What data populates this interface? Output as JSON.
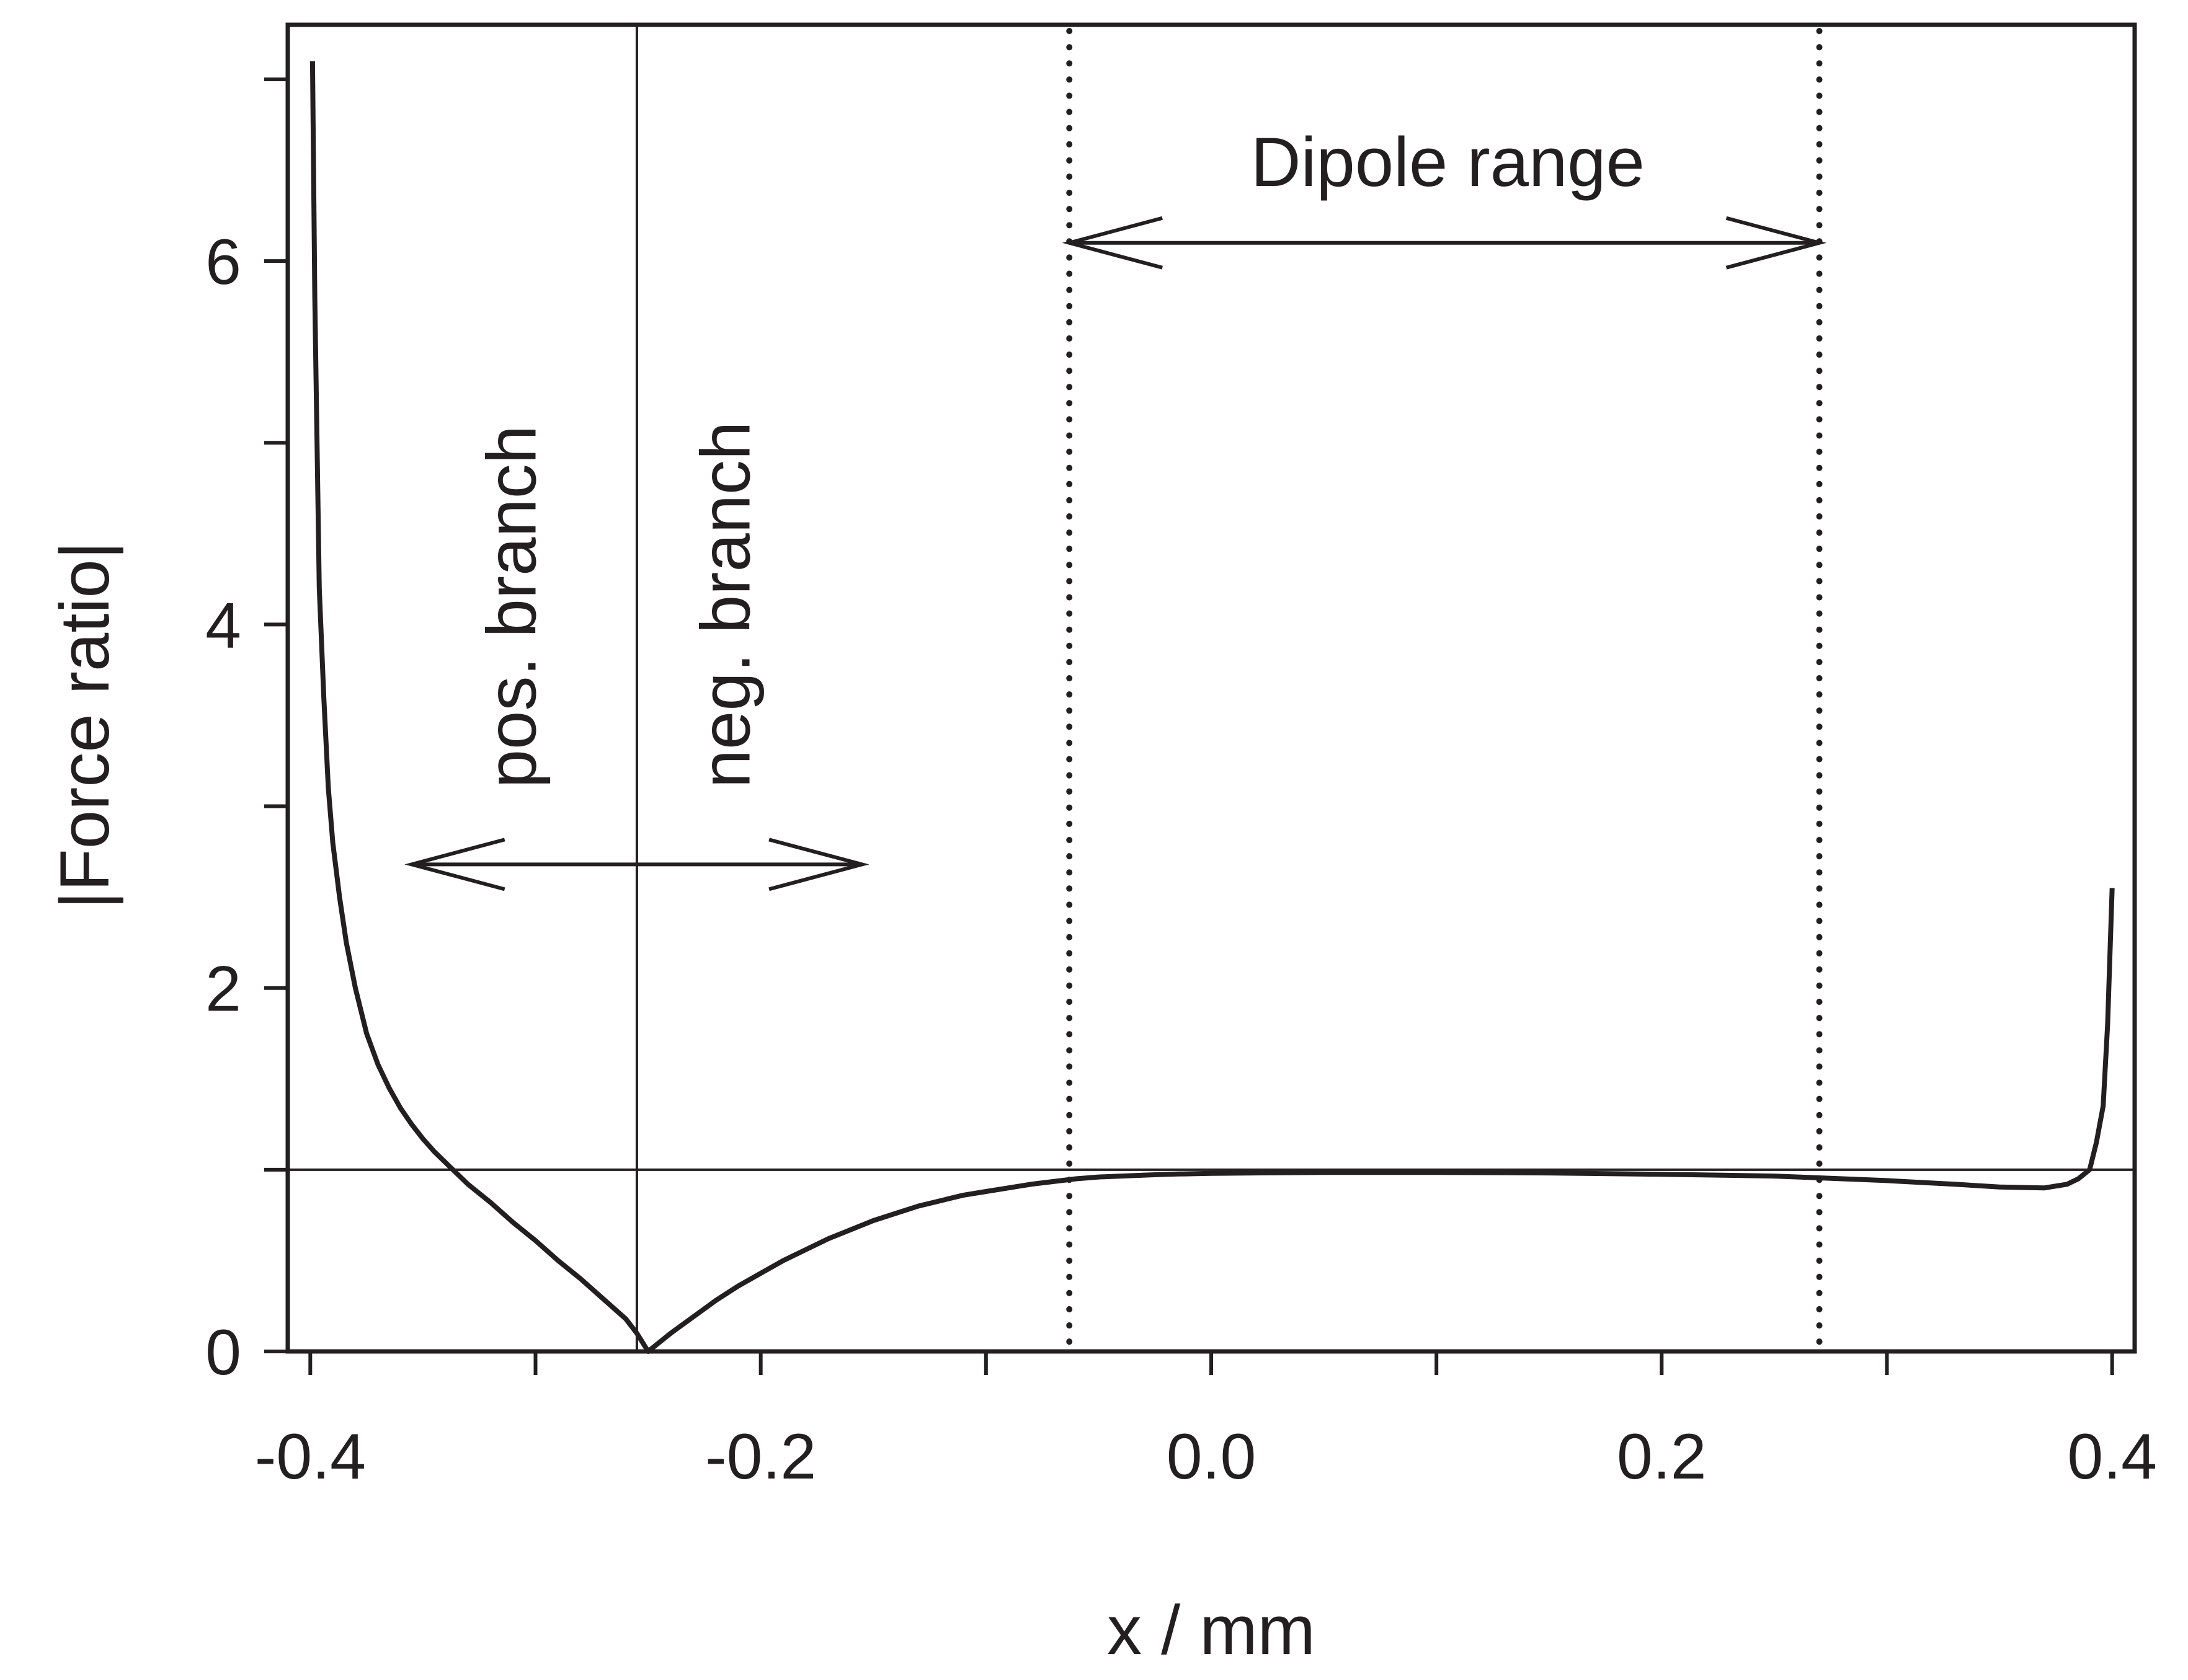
{
  "chart_data": {
    "type": "line",
    "xlabel": "x / mm",
    "ylabel": "|Force ratio|",
    "xlim": [
      -0.41,
      0.41
    ],
    "ylim": [
      0,
      7.3
    ],
    "x_ticks": [
      {
        "value": -0.4,
        "label": "-0.4"
      },
      {
        "value": -0.2,
        "label": "-0.2"
      },
      {
        "value": 0.0,
        "label": "0.0"
      },
      {
        "value": 0.2,
        "label": "0.2"
      },
      {
        "value": 0.4,
        "label": "0.4"
      }
    ],
    "x_minor_ticks": [
      -0.3,
      -0.1,
      0.1,
      0.3
    ],
    "y_ticks": [
      {
        "value": 0,
        "label": "0"
      },
      {
        "value": 2,
        "label": "2"
      },
      {
        "value": 4,
        "label": "4"
      },
      {
        "value": 6,
        "label": "6"
      }
    ],
    "y_minor_ticks": [
      1,
      3,
      5,
      7
    ],
    "grid": false,
    "series": [
      {
        "x": [
          -0.399,
          -0.398,
          -0.396,
          -0.394,
          -0.392,
          -0.39,
          -0.387,
          -0.384,
          -0.38,
          -0.375,
          -0.37,
          -0.365,
          -0.36,
          -0.355,
          -0.35,
          -0.345,
          -0.34,
          -0.335,
          -0.33,
          -0.32,
          -0.31,
          -0.3,
          -0.29,
          -0.28,
          -0.27,
          -0.26,
          -0.255,
          -0.25,
          -0.24,
          -0.23,
          -0.22,
          -0.21,
          -0.2,
          -0.19,
          -0.18,
          -0.17,
          -0.16,
          -0.15,
          -0.14,
          -0.13,
          -0.12,
          -0.11,
          -0.1,
          -0.09,
          -0.08,
          -0.07,
          -0.06,
          -0.05,
          -0.04,
          -0.02,
          0.0,
          0.05,
          0.1,
          0.15,
          0.2,
          0.25,
          0.27,
          0.3,
          0.33,
          0.35,
          0.37,
          0.38,
          0.385,
          0.39,
          0.393,
          0.396,
          0.398,
          0.4
        ],
        "y": [
          7.1,
          5.8,
          4.2,
          3.6,
          3.1,
          2.8,
          2.5,
          2.25,
          2.0,
          1.75,
          1.58,
          1.45,
          1.34,
          1.25,
          1.17,
          1.1,
          1.04,
          0.98,
          0.92,
          0.82,
          0.71,
          0.61,
          0.5,
          0.4,
          0.29,
          0.18,
          0.1,
          0.0,
          0.1,
          0.19,
          0.28,
          0.36,
          0.43,
          0.5,
          0.56,
          0.62,
          0.67,
          0.72,
          0.76,
          0.8,
          0.83,
          0.86,
          0.88,
          0.9,
          0.92,
          0.935,
          0.95,
          0.96,
          0.965,
          0.975,
          0.98,
          0.985,
          0.985,
          0.982,
          0.975,
          0.965,
          0.955,
          0.94,
          0.92,
          0.905,
          0.9,
          0.92,
          0.95,
          1.0,
          1.15,
          1.35,
          1.8,
          2.55
        ]
      }
    ],
    "reference_lines": {
      "horizontal_y": 1,
      "vertical_x": -0.255,
      "dotted_x": [
        -0.063,
        0.27
      ]
    },
    "annotations": {
      "dipole_range": {
        "text": "Dipole range",
        "arrow_from_x": -0.063,
        "arrow_to_x": 0.27,
        "arrow_y": 6.1,
        "text_x": 0.105,
        "text_y": 6.55
      },
      "pos_branch": {
        "text": "pos. branch",
        "text_x": -0.3,
        "text_bottom_y": 3.1
      },
      "neg_branch": {
        "text": "neg. branch",
        "text_x": -0.205,
        "text_bottom_y": 3.1
      },
      "branch_arrow": {
        "from_x": -0.355,
        "to_x": -0.155,
        "y": 2.68
      }
    }
  }
}
